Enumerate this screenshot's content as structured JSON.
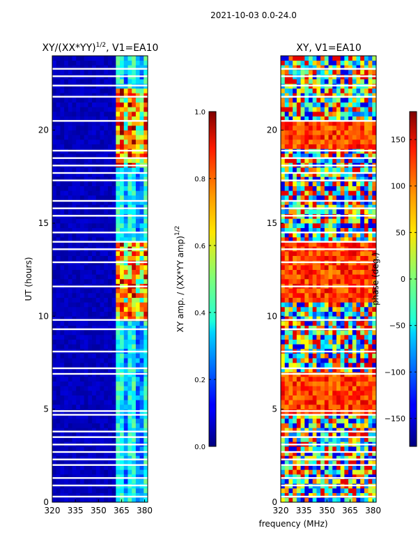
{
  "chart_data": {
    "type": "heatmap",
    "suptitle": "2021-10-03 0.0-24.0",
    "shared_xlabel": "frequency (MHz)",
    "panels": [
      {
        "id": "amp",
        "title_main": "XY/(XX*YY)",
        "title_sup": "1/2",
        "title_rest": ", V1=EA10",
        "x_range": [
          320,
          382
        ],
        "x_ticks": [
          320,
          335,
          350,
          365,
          380
        ],
        "y_range": [
          0,
          24
        ],
        "y_ticks": [
          0,
          5,
          10,
          15,
          20
        ],
        "ylabel": "UT (hours)",
        "colormap": "jet",
        "colorbar": {
          "range": [
            0.0,
            1.0
          ],
          "ticks": [
            "0.0",
            "0.2",
            "0.4",
            "0.6",
            "0.8",
            "1.0"
          ],
          "tick_values": [
            0.0,
            0.2,
            0.4,
            0.6,
            0.8,
            1.0
          ],
          "label_main": "XY amp. / (XX*YY amp)",
          "label_sup": "1/2"
        }
      },
      {
        "id": "phase",
        "title_main": "XY, V1=EA10",
        "x_range": [
          320,
          382
        ],
        "x_ticks": [
          320,
          335,
          350,
          365,
          380
        ],
        "y_range": [
          0,
          24
        ],
        "y_ticks": [
          0,
          5,
          10,
          15,
          20
        ],
        "colormap": "jet",
        "colorbar": {
          "range": [
            -180,
            180
          ],
          "ticks": [
            "−150",
            "−100",
            "−50",
            "0",
            "50",
            "100",
            "150"
          ],
          "tick_values": [
            -150,
            -100,
            -50,
            0,
            50,
            100,
            150
          ],
          "label_main": "phase (deg.)"
        }
      }
    ],
    "flagged_gap_hours": [
      0.3,
      0.9,
      1.3,
      2.0,
      2.3,
      2.7,
      3.1,
      3.5,
      3.8,
      4.7,
      4.9,
      6.9,
      7.2,
      8.1,
      9.3,
      9.8,
      11.6,
      12.9,
      13.6,
      14.0,
      14.5,
      15.4,
      15.8,
      16.2,
      17.3,
      17.7,
      18.1,
      18.5,
      18.9,
      20.5,
      21.8,
      22.4,
      22.9,
      23.3
    ],
    "amp_strong_band_hours": [
      [
        9.7,
        14.0
      ],
      [
        18.0,
        22.3
      ]
    ],
    "phase_red_band_hours": [
      [
        10.8,
        14.0
      ],
      [
        4.8,
        7.0
      ],
      [
        19.0,
        20.5
      ]
    ]
  }
}
